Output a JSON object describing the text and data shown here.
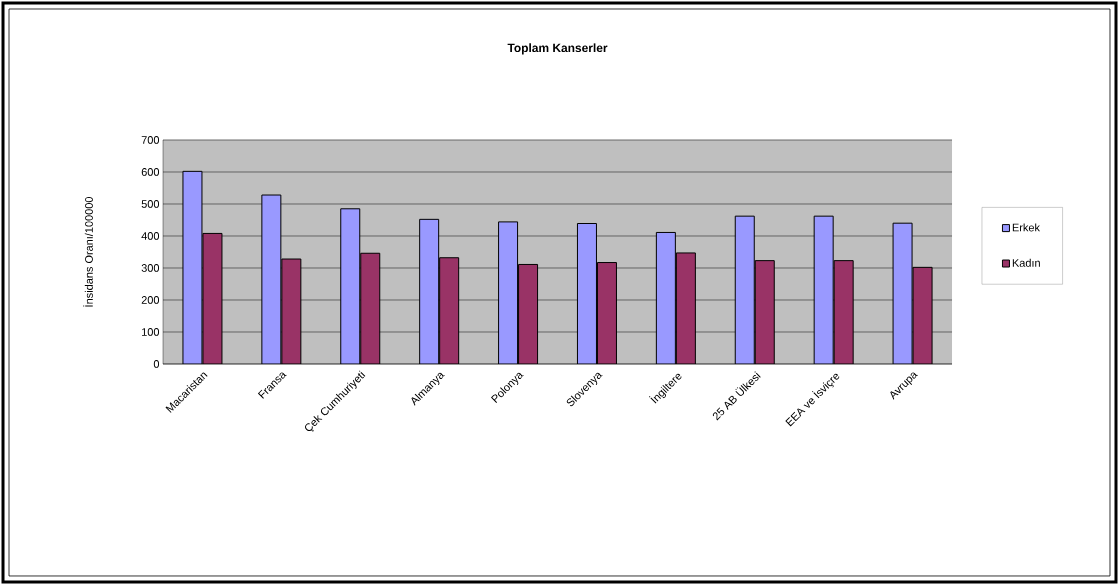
{
  "chart_data": {
    "type": "bar",
    "title": "Toplam Kanserler",
    "ylabel": "İnsidans Oranı/100000",
    "categories": [
      "Macaristan",
      "Fransa",
      "Çek Cumhuriyeti",
      "Almanya",
      "Polonya",
      "Slovenya",
      "İngiltere",
      "25 AB Ülkesi",
      "EEA ve İsviçre",
      "Avrupa"
    ],
    "series": [
      {
        "name": "Erkek",
        "color": "#9999ff",
        "values": [
          602,
          528,
          485,
          452,
          444,
          439,
          411,
          462,
          462,
          440
        ]
      },
      {
        "name": "Kadın",
        "color": "#993366",
        "values": [
          408,
          328,
          346,
          332,
          311,
          317,
          347,
          323,
          323,
          302
        ]
      }
    ],
    "ylim": [
      0,
      700
    ],
    "yticks": [
      0,
      100,
      200,
      300,
      400,
      500,
      600,
      700
    ],
    "grid": "y",
    "legend": "right"
  }
}
